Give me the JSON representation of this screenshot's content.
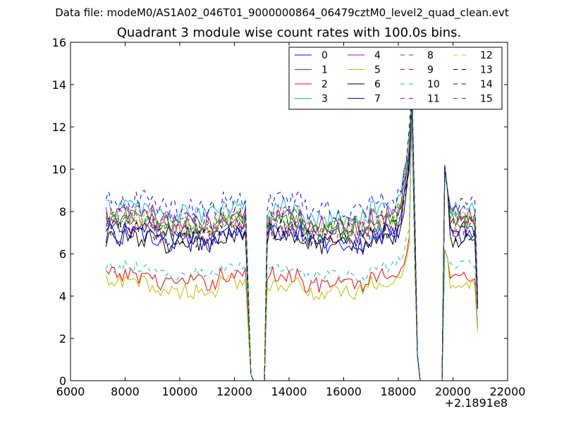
{
  "header": {
    "data_file": "Data file: modeM0/AS1A02_046T01_9000000864_06479cztM0_level2_quad_clean.evt"
  },
  "chart_data": {
    "type": "line",
    "title": "Quadrant 3 module wise count rates with 100.0s bins.",
    "xlabel": "",
    "ylabel": "",
    "x_offset_label": "+2.1891e8",
    "xlim": [
      6000,
      22000
    ],
    "ylim": [
      0,
      16
    ],
    "x_ticks": [
      6000,
      8000,
      10000,
      12000,
      14000,
      16000,
      18000,
      20000,
      22000
    ],
    "x_tick_labels": [
      "6000",
      "8000",
      "10000",
      "12000",
      "14000",
      "16000",
      "18000",
      "20000",
      "22000"
    ],
    "y_ticks": [
      0,
      2,
      4,
      6,
      8,
      10,
      12,
      14,
      16
    ],
    "y_tick_labels": [
      "0",
      "2",
      "4",
      "6",
      "8",
      "10",
      "12",
      "14",
      "16"
    ],
    "legend_position": "top-right",
    "x_range": [
      7300,
      20900
    ],
    "bin_size": 100,
    "segments": [
      {
        "start": 7300,
        "end": 12500
      },
      {
        "start": 13200,
        "end": 18700
      },
      {
        "start": 19600,
        "end": 20900
      }
    ],
    "gaps": [
      [
        12700,
        13100
      ],
      [
        18800,
        19500
      ]
    ],
    "spike": {
      "center": 18500,
      "peak_range": [
        12.4,
        14.1
      ]
    },
    "series": [
      {
        "name": "0",
        "color": "#0000ff",
        "dash": "solid",
        "base": 7.2,
        "variation": 0.5
      },
      {
        "name": "1",
        "color": "#008000",
        "dash": "solid",
        "base": 7.5,
        "variation": 0.5
      },
      {
        "name": "2",
        "color": "#ff0000",
        "dash": "solid",
        "base": 5.0,
        "variation": 0.4
      },
      {
        "name": "3",
        "color": "#00bfbf",
        "dash": "solid",
        "base": 8.2,
        "variation": 0.5
      },
      {
        "name": "4",
        "color": "#bf00bf",
        "dash": "solid",
        "base": 7.8,
        "variation": 0.5
      },
      {
        "name": "5",
        "color": "#bfbf00",
        "dash": "solid",
        "base": 4.6,
        "variation": 0.4
      },
      {
        "name": "6",
        "color": "#000000",
        "dash": "solid",
        "base": 6.8,
        "variation": 0.5
      },
      {
        "name": "7",
        "color": "#0000ff",
        "dash": "solid",
        "base": 6.9,
        "variation": 0.5
      },
      {
        "name": "8",
        "color": "#008000",
        "dash": "dashed",
        "base": 7.6,
        "variation": 0.5
      },
      {
        "name": "9",
        "color": "#ff0000",
        "dash": "dashed",
        "base": 7.3,
        "variation": 0.5
      },
      {
        "name": "10",
        "color": "#00bfbf",
        "dash": "dashed",
        "base": 5.4,
        "variation": 0.3
      },
      {
        "name": "11",
        "color": "#bf00bf",
        "dash": "dashed",
        "base": 7.9,
        "variation": 0.5
      },
      {
        "name": "12",
        "color": "#bfbf00",
        "dash": "dashed",
        "base": 7.7,
        "variation": 0.5
      },
      {
        "name": "13",
        "color": "#000000",
        "dash": "dashed",
        "base": 7.1,
        "variation": 0.5
      },
      {
        "name": "14",
        "color": "#0000ff",
        "dash": "dashed",
        "base": 8.5,
        "variation": 0.5
      },
      {
        "name": "15",
        "color": "#008000",
        "dash": "dashed",
        "base": 7.8,
        "variation": 0.5
      }
    ]
  }
}
